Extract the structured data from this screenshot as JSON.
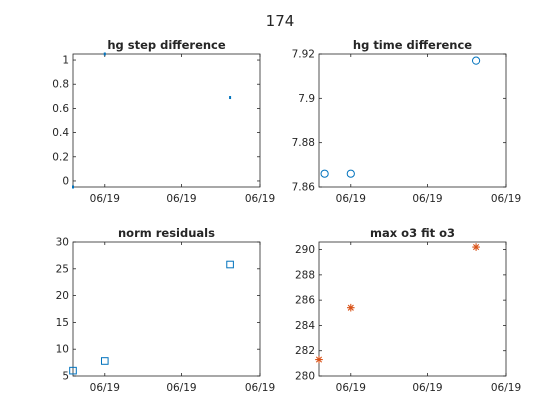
{
  "figure": {
    "title": "174"
  },
  "chart_data": [
    {
      "type": "scatter",
      "title": "hg step difference",
      "xlabel": "",
      "ylabel": "",
      "x_tick_labels": [
        "06/19",
        "06/19",
        "06/19"
      ],
      "y_ticks": [
        0,
        0.2,
        0.4,
        0.6,
        0.8,
        1
      ],
      "y_tick_labels": [
        "0",
        "0.2",
        "0.4",
        "0.6",
        "0.8",
        "1"
      ],
      "ylim": [
        -0.05,
        1.05
      ],
      "xlim": [
        0,
        1
      ],
      "marker": "point",
      "color": "#0072BD",
      "points": [
        {
          "x": 0.0,
          "y": -0.05
        },
        {
          "x": 0.17,
          "y": 1.05
        },
        {
          "x": 0.84,
          "y": 0.69
        }
      ]
    },
    {
      "type": "scatter",
      "title": "hg time difference",
      "xlabel": "",
      "ylabel": "",
      "x_tick_labels": [
        "06/19",
        "06/19",
        "06/19"
      ],
      "y_ticks": [
        7.86,
        7.88,
        7.9,
        7.92
      ],
      "y_tick_labels": [
        "7.86",
        "7.88",
        "7.9",
        "7.92"
      ],
      "ylim": [
        7.86,
        7.92
      ],
      "xlim": [
        0,
        1
      ],
      "marker": "circle",
      "color": "#0072BD",
      "points": [
        {
          "x": 0.03,
          "y": 7.866
        },
        {
          "x": 0.17,
          "y": 7.866
        },
        {
          "x": 0.84,
          "y": 7.917
        }
      ]
    },
    {
      "type": "scatter",
      "title": "norm residuals",
      "xlabel": "",
      "ylabel": "",
      "x_tick_labels": [
        "06/19",
        "06/19",
        "06/19"
      ],
      "y_ticks": [
        5,
        10,
        15,
        20,
        25,
        30
      ],
      "y_tick_labels": [
        "5",
        "10",
        "15",
        "20",
        "25",
        "30"
      ],
      "ylim": [
        5,
        30
      ],
      "xlim": [
        0,
        1
      ],
      "marker": "square",
      "color": "#0072BD",
      "points": [
        {
          "x": 0.0,
          "y": 6.0
        },
        {
          "x": 0.17,
          "y": 7.8
        },
        {
          "x": 0.84,
          "y": 25.8
        }
      ]
    },
    {
      "type": "scatter",
      "title": "max o3 fit o3",
      "xlabel": "",
      "ylabel": "",
      "x_tick_labels": [
        "06/19",
        "06/19",
        "06/19"
      ],
      "y_ticks": [
        280,
        282,
        284,
        286,
        288,
        290
      ],
      "y_tick_labels": [
        "280",
        "282",
        "284",
        "286",
        "288",
        "290"
      ],
      "ylim": [
        280,
        290.6
      ],
      "xlim": [
        0,
        1
      ],
      "marker": "asterisk",
      "color": "#D95319",
      "points": [
        {
          "x": 0.0,
          "y": 281.3
        },
        {
          "x": 0.17,
          "y": 285.4
        },
        {
          "x": 0.84,
          "y": 290.2
        }
      ]
    }
  ]
}
